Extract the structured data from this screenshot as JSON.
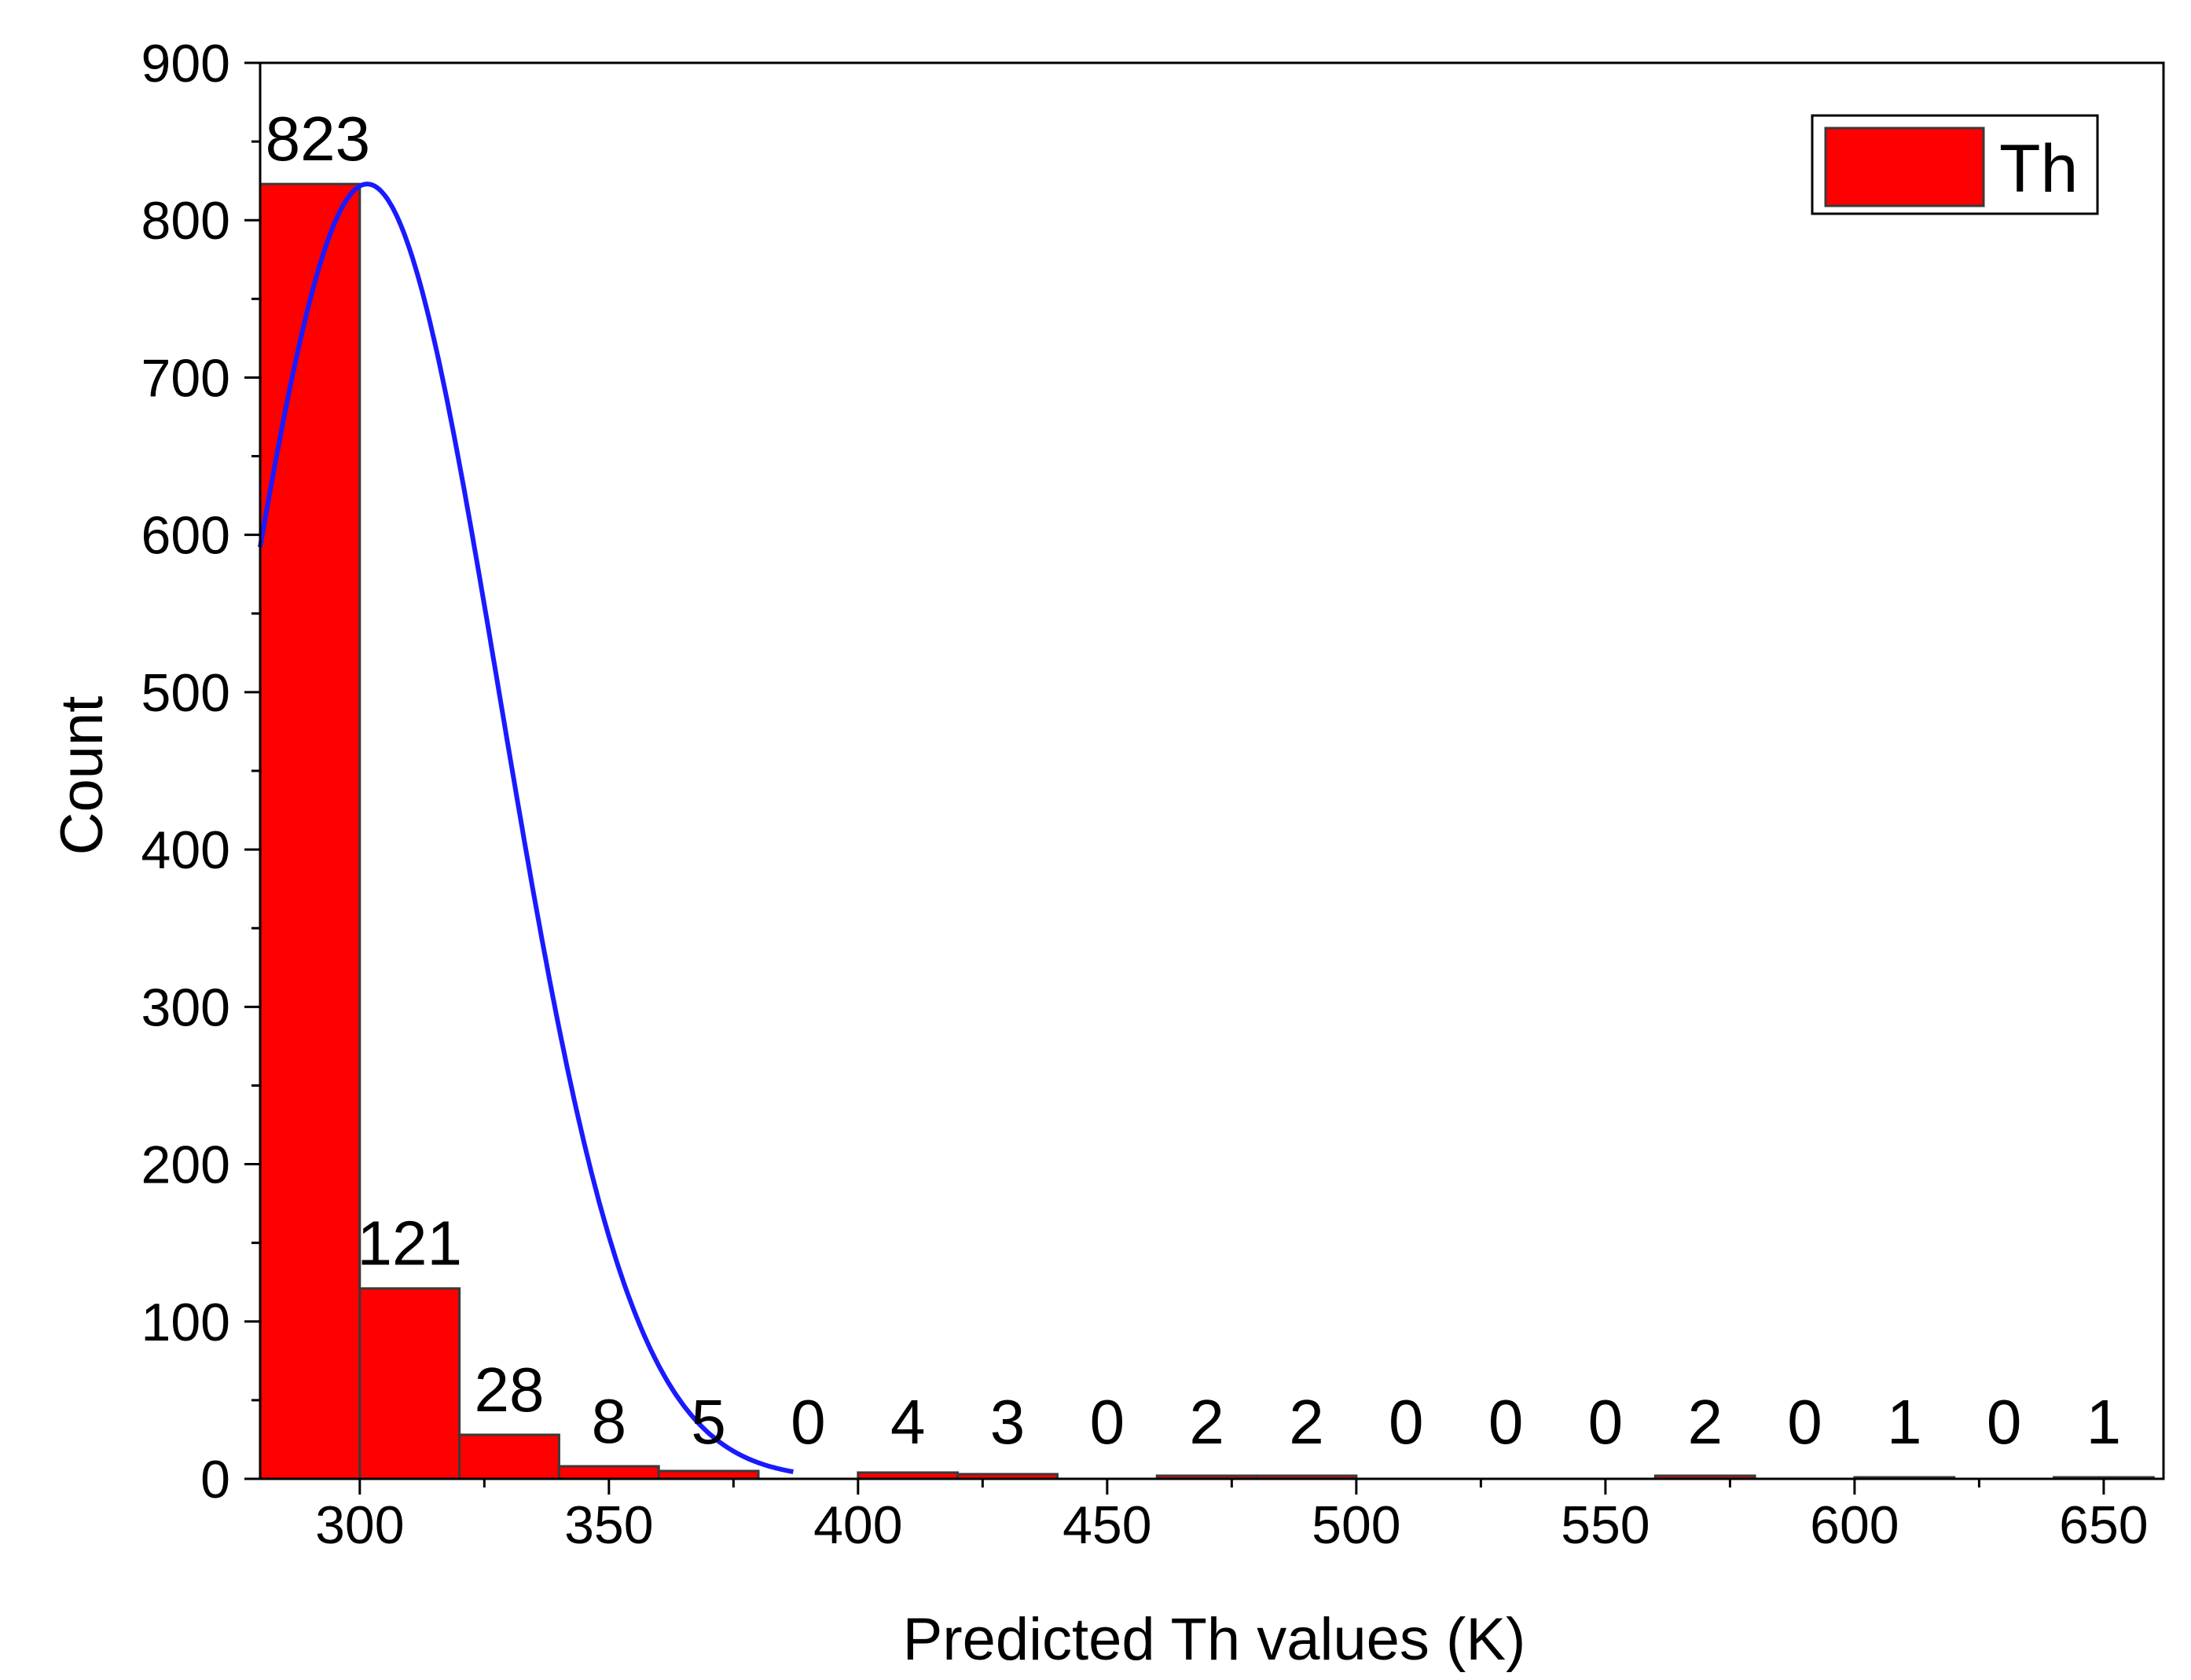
{
  "chart_data": {
    "type": "bar",
    "bin_edges": [
      280,
      300,
      320,
      340,
      360,
      380,
      400,
      420,
      440,
      460,
      480,
      500,
      520,
      540,
      560,
      580,
      600,
      620,
      640,
      660
    ],
    "values": [
      823,
      121,
      28,
      8,
      5,
      0,
      4,
      3,
      0,
      2,
      2,
      0,
      0,
      0,
      2,
      0,
      1,
      0,
      1
    ],
    "value_labels": [
      "823",
      "121",
      "28",
      "8",
      "5",
      "0",
      "4",
      "3",
      "0",
      "2",
      "2",
      "0",
      "0",
      "0",
      "2",
      "0",
      "1",
      "0",
      "1"
    ],
    "xlabel": "Predicted Th values (K)",
    "ylabel": "Count",
    "xlim": [
      280,
      662
    ],
    "ylim": [
      0,
      900
    ],
    "xticks": [
      300,
      350,
      400,
      450,
      500,
      550,
      600,
      650
    ],
    "xtick_labels": [
      "300",
      "350",
      "400",
      "450",
      "500",
      "550",
      "600",
      "650"
    ],
    "yticks": [
      0,
      100,
      200,
      300,
      400,
      500,
      600,
      700,
      800,
      900
    ],
    "ytick_labels": [
      "0",
      "100",
      "200",
      "300",
      "400",
      "500",
      "600",
      "700",
      "800",
      "900"
    ],
    "legend": {
      "label": "Th",
      "position": "top-right"
    },
    "grid": false,
    "bar_color": "#ff0000",
    "bar_edge_color": "#3a3a3a",
    "curve": {
      "type": "normal-fit",
      "peak_x": 301.5,
      "peak_y": 823,
      "sigma": 26.5,
      "x_start": 280,
      "x_end": 387,
      "color": "#1a1aff"
    }
  }
}
